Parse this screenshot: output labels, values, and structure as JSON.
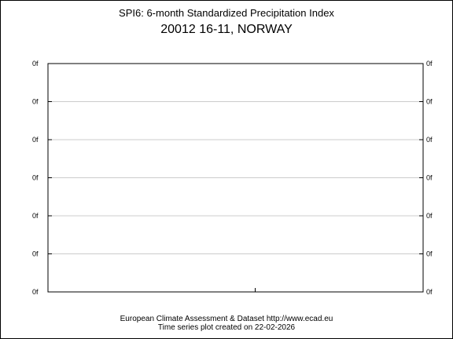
{
  "chart_data": {
    "type": "line",
    "title": "SPI6: 6-month Standardized Precipitation Index",
    "subtitle": "20012 16-11, NORWAY",
    "y_tick_labels": [
      "0f",
      "0f",
      "0f",
      "0f",
      "0f",
      "0f",
      "0f"
    ],
    "x_tick_labels": [],
    "series": [],
    "grid": true
  },
  "footer": {
    "line1": "European Climate Assessment & Dataset  http://www.ecad.eu",
    "line2": "Time series plot created on 22-02-2026"
  },
  "colors": {
    "axis": "#000000",
    "grid": "#cccccc"
  }
}
